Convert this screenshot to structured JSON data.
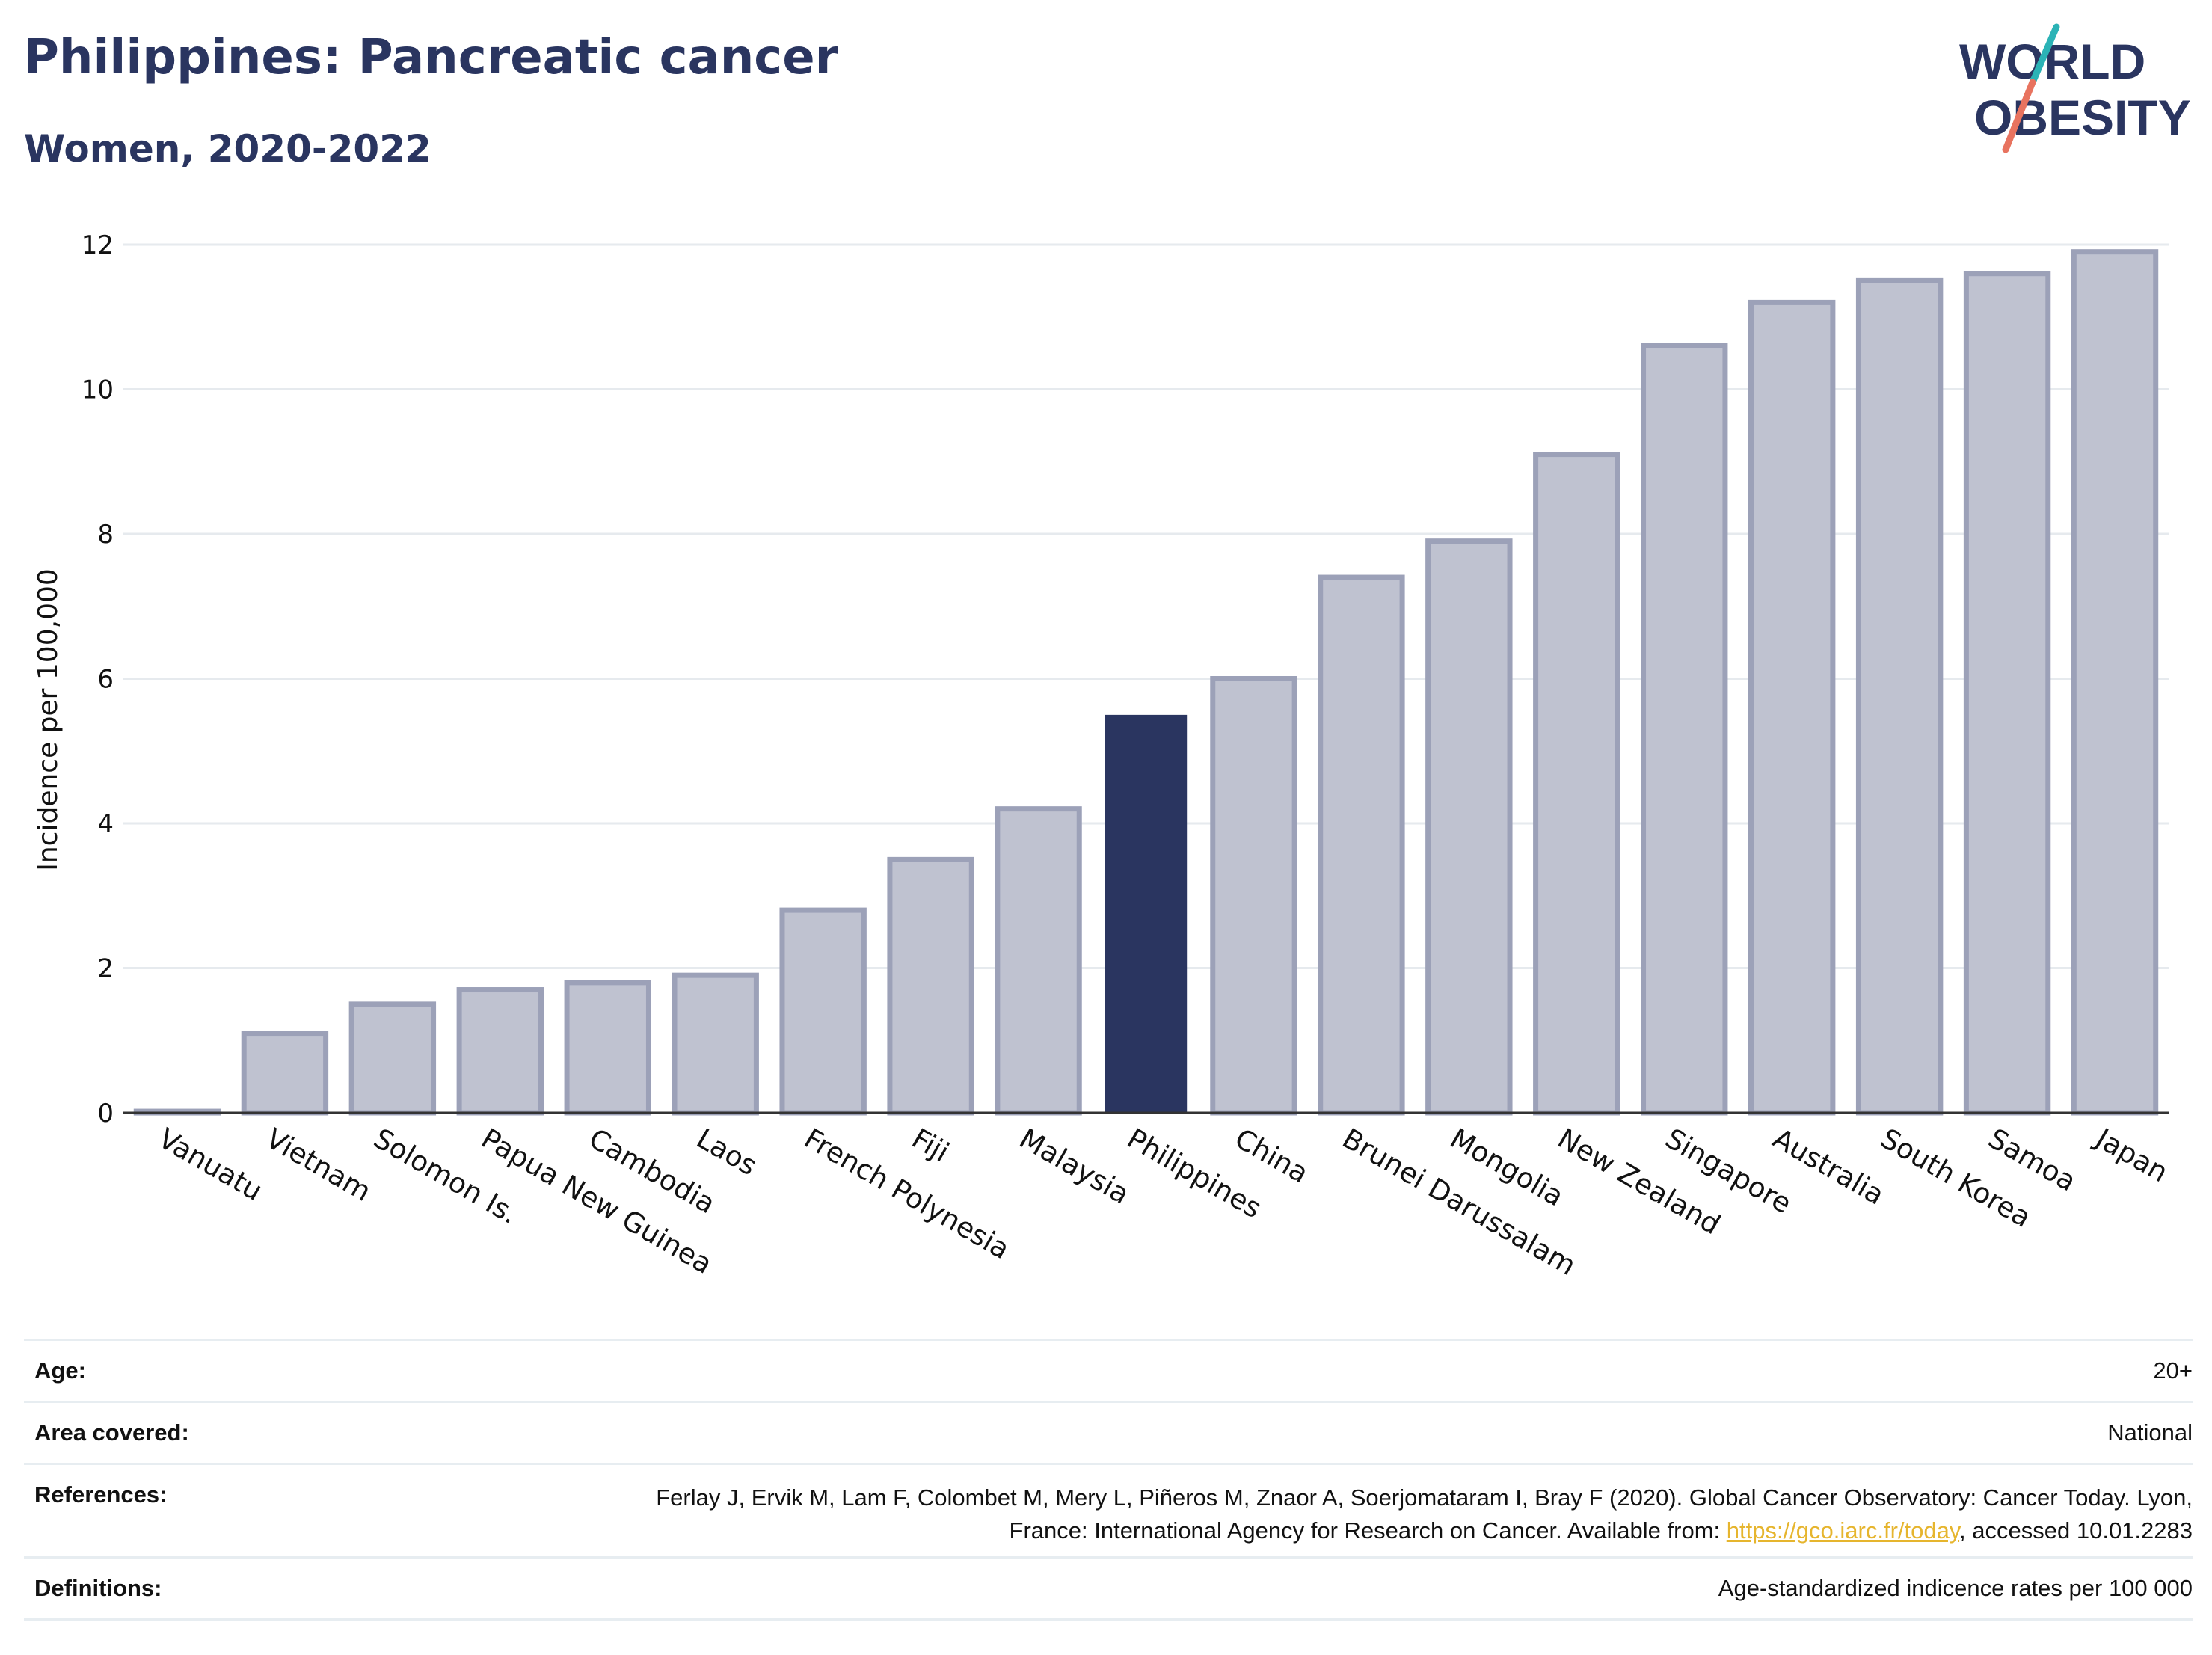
{
  "header": {
    "title": "Philippines: Pancreatic cancer",
    "subtitle": "Women, 2020-2022"
  },
  "logo": {
    "line1": "WORLD",
    "line2": "OBESITY",
    "colors": {
      "text": "#2a3560",
      "slash_teal": "#2bb3b6",
      "slash_coral": "#e8735f"
    }
  },
  "colors": {
    "highlight_bar": "#2a3560",
    "other_bar_fill": "#bfc2d0",
    "other_bar_stroke": "#9ca1b8",
    "grid": "#e6eaee",
    "link": "#e6b52e"
  },
  "chart_data": {
    "type": "bar",
    "ylabel": "Incidence per 100,000",
    "ylim": [
      0,
      12
    ],
    "yticks": [
      0,
      2,
      4,
      6,
      8,
      10,
      12
    ],
    "grid": true,
    "highlight": "Philippines",
    "categories": [
      "Vanuatu",
      "Vietnam",
      "Solomon Is.",
      "Papua New Guinea",
      "Cambodia",
      "Laos",
      "French Polynesia",
      "Fiji",
      "Malaysia",
      "Philippines",
      "China",
      "Brunei Darussalam",
      "Mongolia",
      "New Zealand",
      "Singapore",
      "Australia",
      "South Korea",
      "Samoa",
      "Japan"
    ],
    "values": [
      0.02,
      1.1,
      1.5,
      1.7,
      1.8,
      1.9,
      2.8,
      3.5,
      4.2,
      5.5,
      6.0,
      7.4,
      7.9,
      9.1,
      10.6,
      11.2,
      11.5,
      11.6,
      11.9
    ]
  },
  "info": {
    "age_label": "Age:",
    "age_value": "20+",
    "area_label": "Area covered:",
    "area_value": "National",
    "references_label": "References:",
    "references_text_1": "Ferlay J, Ervik M, Lam F, Colombet M, Mery L, Piñeros M, Znaor A, Soerjomataram I, Bray F (2020). Global Cancer Observatory: Cancer Today. Lyon, France: International Agency for Research on Cancer. Available from: ",
    "references_link": "https://gco.iarc.fr/today",
    "references_text_2": ", accessed 10.01.2283",
    "definitions_label": "Definitions:",
    "definitions_value": "Age-standardized indicence rates per 100 000"
  }
}
